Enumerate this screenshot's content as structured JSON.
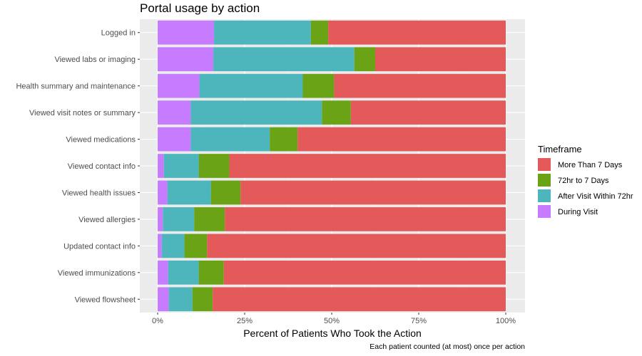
{
  "chart_data": {
    "type": "bar",
    "orientation": "horizontal",
    "stacked": true,
    "title": "Portal usage by action",
    "xlabel": "Percent of Patients Who Took the Action",
    "caption": "Each patient counted (at most) once per action",
    "xlim": [
      0,
      100
    ],
    "x_ticks": [
      "0%",
      "25%",
      "50%",
      "75%",
      "100%"
    ],
    "x_tick_values": [
      0,
      25,
      50,
      75,
      100
    ],
    "grid": true,
    "legend": {
      "title": "Timeframe",
      "position": "right"
    },
    "categories": [
      "Logged in",
      "Viewed labs or imaging",
      "Health summary and maintenance",
      "Viewed visit notes or summary",
      "Viewed medications",
      "Viewed contact info",
      "Viewed health issues",
      "Viewed allergies",
      "Updated contact info",
      "Viewed immunizations",
      "Viewed flowsheet"
    ],
    "series": [
      {
        "name": "During Visit",
        "color": "#C77CFF",
        "values": [
          16.2,
          16.0,
          12.0,
          9.5,
          9.5,
          1.8,
          2.8,
          1.5,
          1.2,
          3.0,
          3.2
        ]
      },
      {
        "name": "After Visit Within 72hr",
        "color": "#4DB6BC",
        "values": [
          27.8,
          40.5,
          29.7,
          37.7,
          22.7,
          10.0,
          12.5,
          9.0,
          6.5,
          8.8,
          6.8
        ]
      },
      {
        "name": "72hr to 7 Days",
        "color": "#6AA316",
        "values": [
          5.0,
          6.0,
          9.0,
          8.3,
          8.0,
          8.8,
          8.5,
          8.8,
          6.5,
          7.2,
          5.8
        ]
      },
      {
        "name": "More Than 7 Days",
        "color": "#E45A5A",
        "values": [
          51.0,
          37.5,
          49.3,
          44.5,
          59.8,
          79.4,
          76.2,
          80.7,
          85.8,
          81.0,
          84.2
        ]
      }
    ],
    "legend_order": [
      "More Than 7 Days",
      "72hr to 7 Days",
      "After Visit Within 72hr",
      "During Visit"
    ]
  }
}
